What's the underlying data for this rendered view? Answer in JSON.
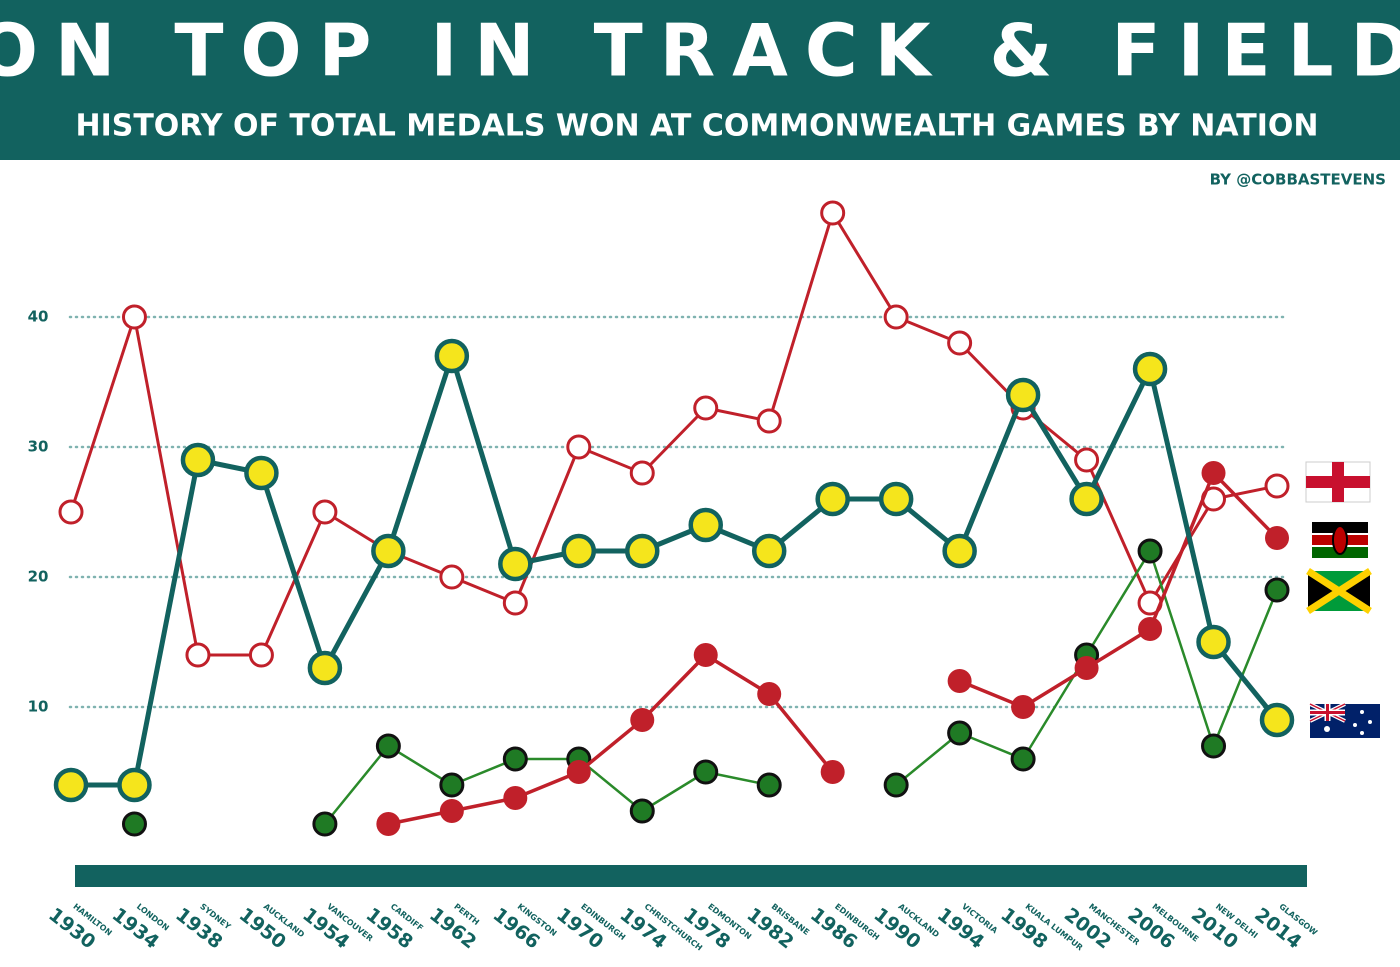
{
  "chart_data": {
    "type": "line",
    "title": "ON TOP IN TRACK & FIELD",
    "subtitle": "HISTORY OF TOTAL MEDALS WON AT COMMONWEALTH GAMES BY NATION",
    "credit": "BY @COBBASTEVENS",
    "categories": [
      "1930",
      "1934",
      "1938",
      "1950",
      "1954",
      "1958",
      "1962",
      "1966",
      "1970",
      "1974",
      "1978",
      "1982",
      "1986",
      "1990",
      "1994",
      "1998",
      "2002",
      "2006",
      "2010",
      "2014"
    ],
    "cities": [
      "HAMILTON",
      "LONDON",
      "SYDNEY",
      "AUCKLAND",
      "VANCOUVER",
      "CARDIFF",
      "PERTH",
      "KINGSTON",
      "EDINBURGH",
      "CHRISTCHURCH",
      "EDMONTON",
      "BRISBANE",
      "EDINBURGH",
      "AUCKLAND",
      "VICTORIA",
      "KUALA LUMPUR",
      "MANCHESTER",
      "MELBOURNE",
      "NEW DELHI",
      "GLASGOW"
    ],
    "ylim": [
      0,
      50
    ],
    "yticks": [
      10,
      20,
      30,
      40
    ],
    "grid": true,
    "series": [
      {
        "color": "#c0202a",
        "marker_color": "#ffffff",
        "values": [
          25,
          40,
          14,
          14,
          25,
          22,
          20,
          18,
          30,
          28,
          33,
          32,
          48,
          40,
          38,
          33,
          29,
          18,
          26,
          27
        ]
      },
      {
        "color": "#2a8a2a",
        "marker_color": "#1f7a24",
        "values": [
          null,
          1,
          null,
          null,
          1,
          7,
          4,
          6,
          6,
          2,
          5,
          4,
          null,
          4,
          8,
          6,
          14,
          22,
          7,
          19
        ]
      },
      {
        "color": "#c0202a",
        "marker_color": "#c0202a",
        "values": [
          null,
          null,
          null,
          null,
          null,
          1,
          2,
          3,
          5,
          9,
          14,
          11,
          5,
          null,
          12,
          10,
          13,
          16,
          28,
          23
        ]
      },
      {
        "color": "#12625f",
        "marker_color": "#f5e51c",
        "values": [
          4,
          4,
          29,
          28,
          13,
          22,
          37,
          21,
          22,
          22,
          24,
          22,
          26,
          26,
          22,
          34,
          26,
          36,
          15,
          9
        ]
      }
    ]
  }
}
